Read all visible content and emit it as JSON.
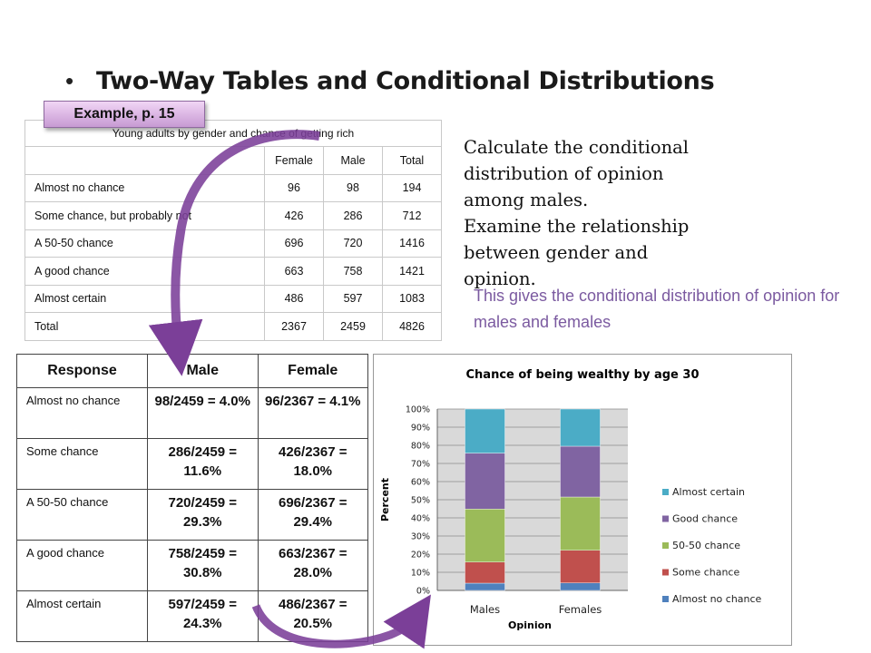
{
  "slide": {
    "bullet": "•",
    "title": "Two-Way Tables and Conditional Distributions",
    "example_badge": "Example, p. 15",
    "instructions": [
      "Calculate the conditional",
      "distribution of opinion",
      "among males.",
      "Examine the relationship",
      "between gender and",
      "opinion."
    ],
    "note": "This gives the conditional distribution of opinion for males and females"
  },
  "table1": {
    "caption": "Young adults by gender and chance of getting rich",
    "headers": [
      "",
      "Female",
      "Male",
      "Total"
    ],
    "rows": [
      {
        "label": "Almost no chance",
        "female": "96",
        "male": "98",
        "total": "194"
      },
      {
        "label": "Some chance, but probably not",
        "female": "426",
        "male": "286",
        "total": "712"
      },
      {
        "label": "A 50-50 chance",
        "female": "696",
        "male": "720",
        "total": "1416"
      },
      {
        "label": "A good chance",
        "female": "663",
        "male": "758",
        "total": "1421"
      },
      {
        "label": "Almost certain",
        "female": "486",
        "male": "597",
        "total": "1083"
      },
      {
        "label": "Total",
        "female": "2367",
        "male": "2459",
        "total": "4826"
      }
    ]
  },
  "table2": {
    "headers": [
      "Response",
      "Male",
      "Female"
    ],
    "rows": [
      {
        "label": "Almost no chance",
        "male": "98/2459 = 4.0%",
        "female": "96/2367 = 4.1%"
      },
      {
        "label": "Some chance",
        "male": "286/2459 = 11.6%",
        "female": "426/2367 = 18.0%"
      },
      {
        "label": "A 50-50 chance",
        "male": "720/2459 = 29.3%",
        "female": "696/2367 = 29.4%"
      },
      {
        "label": "A good chance",
        "male": "758/2459 = 30.8%",
        "female": "663/2367 = 28.0%"
      },
      {
        "label": "Almost certain",
        "male": "597/2459 = 24.3%",
        "female": "486/2367 = 20.5%"
      }
    ]
  },
  "colors": {
    "almost_no_chance": "#4f81bd",
    "some_chance": "#c0504d",
    "fifty_fifty": "#9bbb59",
    "good_chance": "#8064a2",
    "almost_certain": "#4bacc6",
    "arrow": "#7b3f98"
  },
  "chart_data": {
    "type": "bar",
    "stacked": true,
    "percent_stacked": true,
    "title": "Chance of being wealthy by age 30",
    "xlabel": "Opinion",
    "ylabel": "Percent",
    "categories": [
      "Males",
      "Females"
    ],
    "ylim": [
      0,
      100
    ],
    "yticks": [
      "0%",
      "10%",
      "20%",
      "30%",
      "40%",
      "50%",
      "60%",
      "70%",
      "80%",
      "90%",
      "100%"
    ],
    "legend_position": "right",
    "series": [
      {
        "name": "Almost no chance",
        "values": [
          4.0,
          4.1
        ],
        "color": "#4f81bd"
      },
      {
        "name": "Some chance",
        "values": [
          11.6,
          18.0
        ],
        "color": "#c0504d"
      },
      {
        "name": "50-50 chance",
        "values": [
          29.3,
          29.4
        ],
        "color": "#9bbb59"
      },
      {
        "name": "Good chance",
        "values": [
          30.8,
          28.0
        ],
        "color": "#8064a2"
      },
      {
        "name": "Almost certain",
        "values": [
          24.3,
          20.5
        ],
        "color": "#4bacc6"
      }
    ]
  }
}
